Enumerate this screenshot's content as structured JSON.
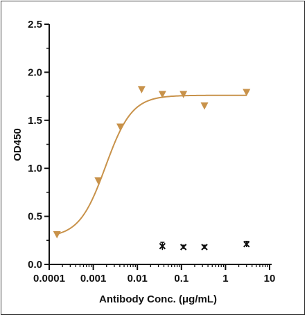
{
  "chart_data": {
    "type": "scatter",
    "title": "",
    "xlabel": "Antibody Conc. (μg/mL)",
    "ylabel": "OD450",
    "x_scale": "log",
    "xlim": [
      0.0001,
      10
    ],
    "ylim": [
      0,
      2.5
    ],
    "x_ticks": [
      {
        "value": 0.0001,
        "label": "0.0001"
      },
      {
        "value": 0.001,
        "label": "0.001"
      },
      {
        "value": 0.01,
        "label": "0.01"
      },
      {
        "value": 0.1,
        "label": "0.1"
      },
      {
        "value": 1,
        "label": "1"
      },
      {
        "value": 10,
        "label": "10"
      }
    ],
    "y_ticks": [
      {
        "value": 0.0,
        "label": "0.0"
      },
      {
        "value": 0.5,
        "label": "0.5"
      },
      {
        "value": 1.0,
        "label": "1.0"
      },
      {
        "value": 1.5,
        "label": "1.5"
      },
      {
        "value": 2.0,
        "label": "2.0"
      },
      {
        "value": 2.5,
        "label": "2.5"
      }
    ],
    "grid": false,
    "legend": "none",
    "series": [
      {
        "marker": "triangle-down",
        "color": "#c8924a",
        "points": [
          {
            "x": 0.00015,
            "y": 0.31
          },
          {
            "x": 0.0013,
            "y": 0.87
          },
          {
            "x": 0.0041,
            "y": 1.43
          },
          {
            "x": 0.0125,
            "y": 1.82
          },
          {
            "x": 0.037,
            "y": 1.77
          },
          {
            "x": 0.111,
            "y": 1.77
          },
          {
            "x": 0.333,
            "y": 1.65
          },
          {
            "x": 3.0,
            "y": 1.79
          }
        ],
        "fit": {
          "model": "4PL",
          "bottom": 0.28,
          "top": 1.76,
          "ec50": 0.0019,
          "hill": 1.45,
          "x_range": [
            0.00015,
            3.0
          ],
          "color": "#c8924a"
        }
      },
      {
        "marker": "x",
        "color": "#111111",
        "points": [
          {
            "x": 0.037,
            "y": 0.19
          },
          {
            "x": 0.111,
            "y": 0.18
          },
          {
            "x": 0.333,
            "y": 0.18
          },
          {
            "x": 3.0,
            "y": 0.21
          }
        ],
        "error_bars": [
          0.04,
          0.02,
          0.02,
          0.03
        ]
      }
    ]
  }
}
